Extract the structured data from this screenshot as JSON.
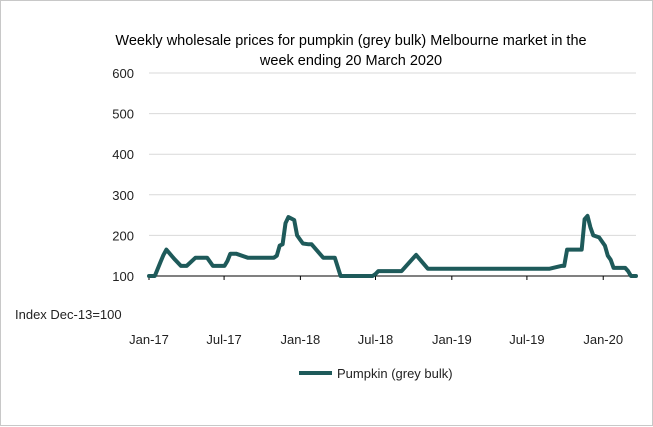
{
  "chart_data": {
    "type": "line",
    "title_line1": "Weekly wholesale prices for pumpkin (grey bulk) Melbourne market in the",
    "title_line2": "week ending 20 March 2020",
    "ylabel": "Index Dec-13=100",
    "ylim": [
      100,
      600
    ],
    "yticks": [
      100,
      200,
      300,
      400,
      500,
      600
    ],
    "ytick_labels": [
      "100",
      "200",
      "300",
      "400",
      "500",
      "600"
    ],
    "xlim": [
      "2017-01-01",
      "2020-03-20"
    ],
    "xticks": [
      "2017-01-01",
      "2017-07-01",
      "2018-01-01",
      "2018-07-01",
      "2019-01-01",
      "2019-07-01",
      "2020-01-01"
    ],
    "xtick_labels": [
      "Jan-17",
      "Jul-17",
      "Jan-18",
      "Jul-18",
      "Jan-19",
      "Jul-19",
      "Jan-20"
    ],
    "grid": "horizontal",
    "legend_position": "bottom-center",
    "color": "#1e5a5a",
    "series": [
      {
        "name": "Pumpkin (grey bulk)",
        "x": [
          "2017-01-01",
          "2017-01-15",
          "2017-01-29",
          "2017-02-05",
          "2017-02-12",
          "2017-02-26",
          "2017-03-05",
          "2017-03-19",
          "2017-04-02",
          "2017-04-23",
          "2017-04-30",
          "2017-05-14",
          "2017-05-21",
          "2017-06-04",
          "2017-06-11",
          "2017-06-18",
          "2017-06-25",
          "2017-07-02",
          "2017-07-09",
          "2017-07-16",
          "2017-07-23",
          "2017-07-30",
          "2017-08-27",
          "2017-09-24",
          "2017-10-01",
          "2017-10-15",
          "2017-10-22",
          "2017-10-29",
          "2017-11-05",
          "2017-11-12",
          "2017-11-19",
          "2017-11-26",
          "2017-12-03",
          "2017-12-17",
          "2017-12-24",
          "2017-12-31",
          "2018-01-07",
          "2018-01-21",
          "2018-01-28",
          "2018-02-25",
          "2018-03-25",
          "2018-04-08",
          "2018-04-15",
          "2018-05-06",
          "2018-06-03",
          "2018-06-10",
          "2018-06-24",
          "2018-07-01",
          "2018-07-08",
          "2018-07-15",
          "2018-07-22",
          "2018-08-05",
          "2018-09-02",
          "2018-10-07",
          "2018-11-04",
          "2018-12-02",
          "2018-12-16",
          "2018-12-30",
          "2019-01-06",
          "2019-01-13",
          "2019-02-03",
          "2019-02-24",
          "2019-03-10",
          "2019-03-17",
          "2019-03-24",
          "2019-04-07",
          "2019-04-21",
          "2019-04-28",
          "2019-05-12",
          "2019-05-26",
          "2019-06-09",
          "2019-06-16",
          "2019-07-07",
          "2019-07-28",
          "2019-08-11",
          "2019-08-18",
          "2019-08-25",
          "2019-09-22",
          "2019-09-29",
          "2019-10-06",
          "2019-10-20",
          "2019-10-27",
          "2019-11-03",
          "2019-11-10",
          "2019-11-17",
          "2019-11-24",
          "2019-12-01",
          "2019-12-08",
          "2019-12-22",
          "2020-01-05",
          "2020-01-12",
          "2020-01-19",
          "2020-01-26",
          "2020-02-02",
          "2020-02-09",
          "2020-02-16",
          "2020-02-23",
          "2020-03-01",
          "2020-03-08",
          "2020-03-15",
          "2020-03-20"
        ],
        "values": [
          100,
          100,
          135,
          152,
          165,
          148,
          140,
          125,
          125,
          145,
          145,
          145,
          145,
          125,
          125,
          125,
          125,
          125,
          137,
          155,
          155,
          155,
          145,
          145,
          145,
          145,
          145,
          145,
          150,
          175,
          178,
          230,
          245,
          238,
          200,
          190,
          180,
          178,
          178,
          145,
          145,
          100,
          100,
          100,
          100,
          100,
          100,
          105,
          112,
          112,
          112,
          112,
          112,
          152,
          118,
          118,
          118,
          118,
          118,
          118,
          118,
          118,
          118,
          118,
          118,
          118,
          118,
          118,
          118,
          118,
          118,
          118,
          118,
          118,
          118,
          118,
          118,
          125,
          125,
          165,
          165,
          165,
          165,
          165,
          240,
          248,
          220,
          200,
          195,
          175,
          150,
          140,
          120,
          120,
          120,
          120,
          120,
          112,
          100,
          100,
          100
        ]
      }
    ]
  }
}
